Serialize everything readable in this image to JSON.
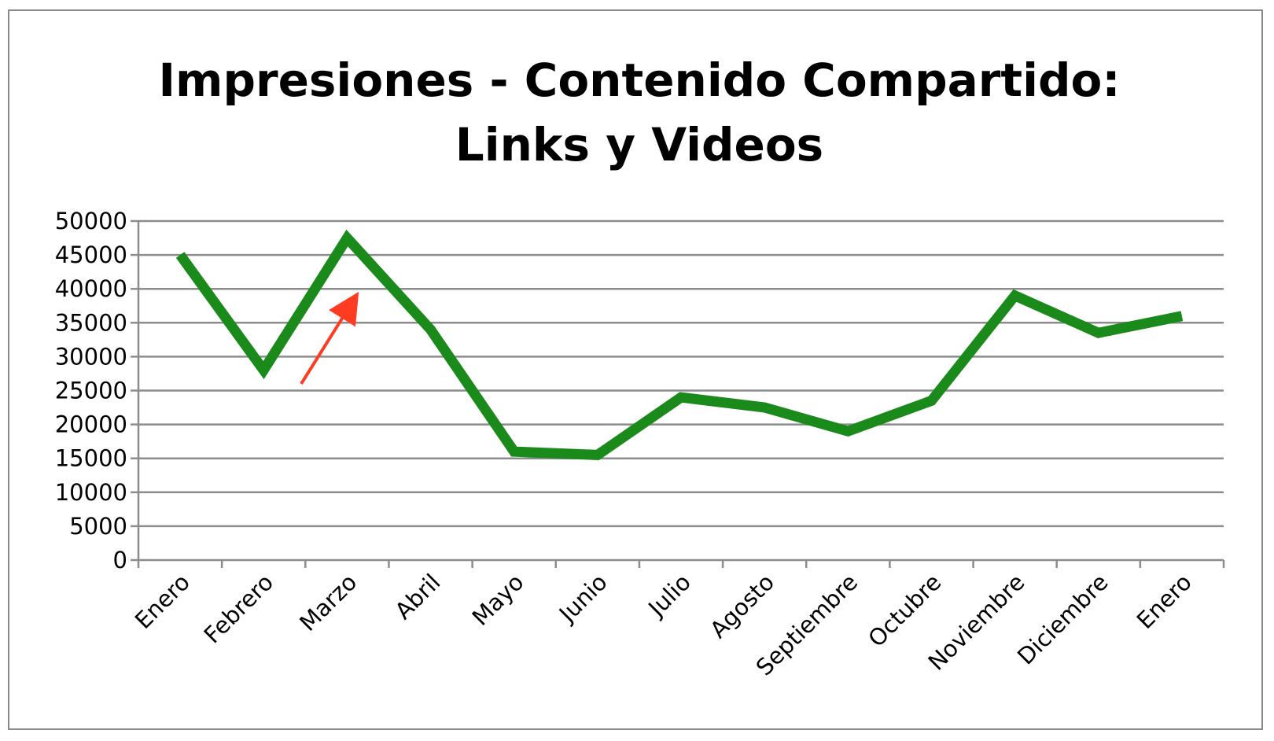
{
  "chart_data": {
    "type": "line",
    "title_lines": [
      "Impresiones - Contenido Compartido:",
      "Links y Videos"
    ],
    "categories": [
      "Enero",
      "Febrero",
      "Marzo",
      "Abril",
      "Mayo",
      "Junio",
      "Julio",
      "Agosto",
      "Septiembre",
      "Octubre",
      "Noviembre",
      "Diciembre",
      "Enero"
    ],
    "series": [
      {
        "values": [
          45000,
          28000,
          47500,
          34000,
          16000,
          15500,
          24000,
          22500,
          19000,
          23500,
          39000,
          33500,
          36000
        ],
        "color": "#1a8a1a"
      }
    ],
    "yticks": [
      "0",
      "5000",
      "10000",
      "15000",
      "20000",
      "25000",
      "30000",
      "35000",
      "40000",
      "45000",
      "50000"
    ],
    "ylim": [
      0,
      50000
    ],
    "grid": true,
    "legend": "none",
    "annotations": [
      {
        "type": "arrow",
        "color": "#ff3b22",
        "from": {
          "x": "Febrero",
          "y": 26000
        },
        "to": {
          "x": "Marzo",
          "y": 38000
        }
      }
    ]
  }
}
